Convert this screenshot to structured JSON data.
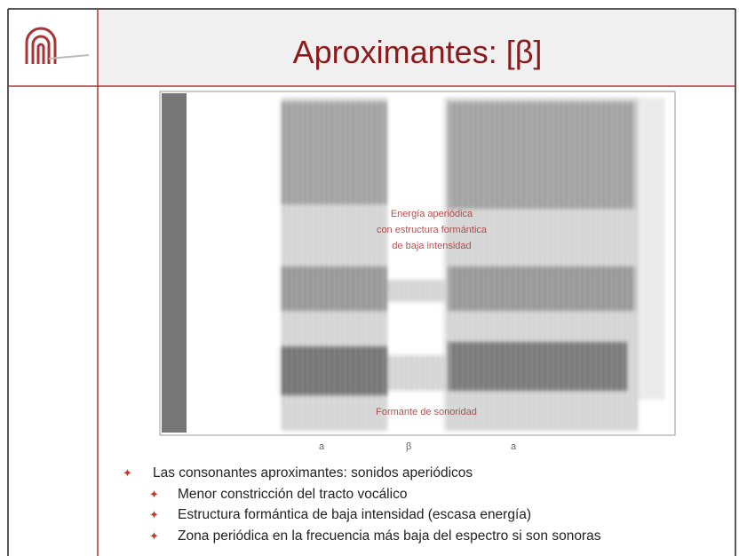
{
  "header": {
    "title": "Aproximantes: [β]"
  },
  "figure": {
    "annotations": [
      "Energía aperiódica",
      "con estructura formántica",
      "de baja intensidad",
      "Formante de sonoridad"
    ],
    "segment_labels": [
      "a",
      "β",
      "a"
    ]
  },
  "bullets": [
    {
      "text": "Las consonantes aproximantes: sonidos aperiódicos",
      "subitems": [
        "Menor constricción del tracto vocálico",
        "Estructura formántica de baja intensidad (escasa energía)",
        "Zona periódica en la frecuencia más baja del espectro si son sonoras"
      ]
    }
  ]
}
